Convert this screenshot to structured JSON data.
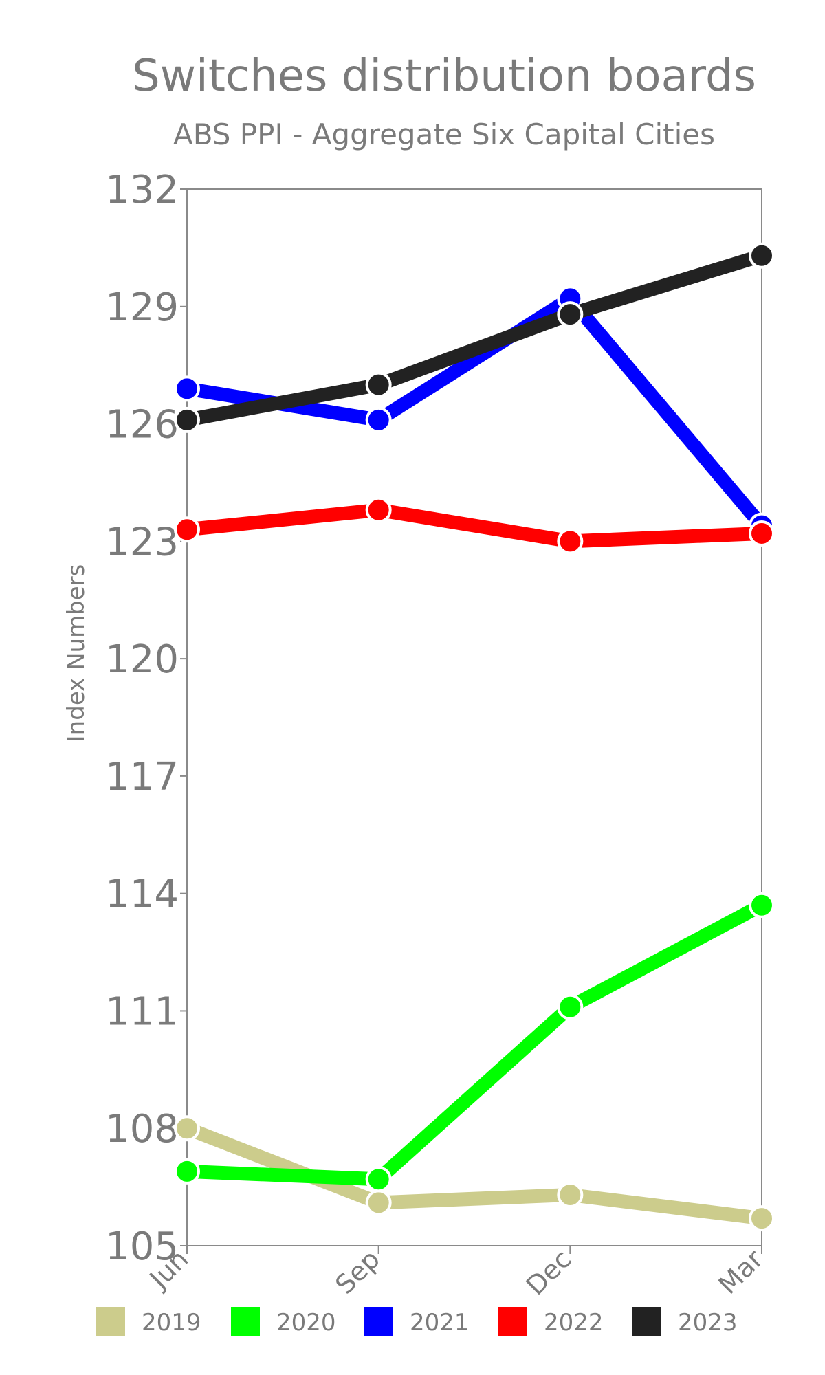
{
  "chart_data": {
    "type": "line",
    "title": "Switches distribution boards",
    "subtitle": "ABS PPI - Aggregate Six Capital Cities",
    "ylabel": "Index Numbers",
    "xlabel": "",
    "categories": [
      "Jun",
      "Sep",
      "Dec",
      "Mar"
    ],
    "ylim": [
      105,
      132
    ],
    "yticks": [
      105,
      108,
      111,
      114,
      117,
      120,
      123,
      126,
      129,
      132
    ],
    "grid": false,
    "legend_position": "bottom",
    "series": [
      {
        "name": "2019",
        "color": "#cccc8c",
        "values": [
          108.0,
          106.1,
          106.3,
          105.7
        ]
      },
      {
        "name": "2020",
        "color": "#00ff00",
        "values": [
          106.9,
          106.7,
          111.1,
          113.7
        ]
      },
      {
        "name": "2021",
        "color": "#0000ff",
        "values": [
          126.9,
          126.1,
          129.2,
          123.4
        ]
      },
      {
        "name": "2022",
        "color": "#ff0000",
        "values": [
          123.3,
          123.8,
          123.0,
          123.2
        ]
      },
      {
        "name": "2023",
        "color": "#222222",
        "values": [
          126.1,
          127.0,
          128.8,
          130.3
        ]
      }
    ]
  }
}
